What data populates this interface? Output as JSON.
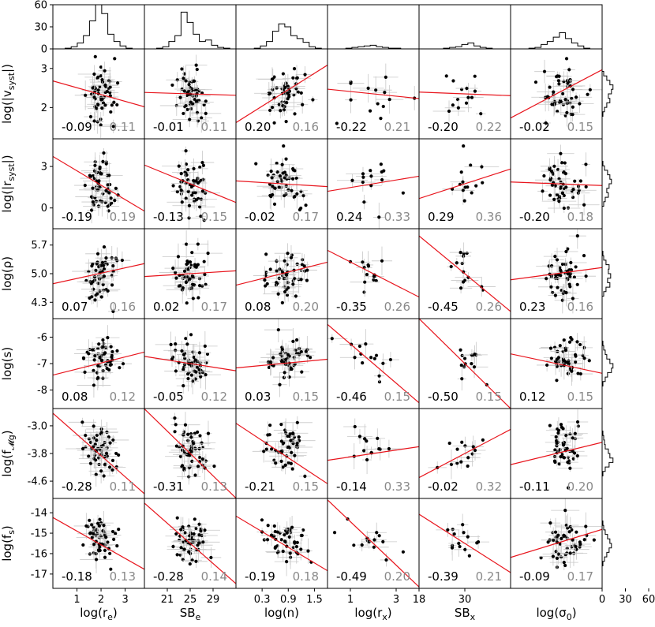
{
  "chart_data": {
    "type": "scatter",
    "layout": "scatter-matrix with marginal histograms",
    "columns": [
      {
        "label": "log(r",
        "sub": "e",
        "suffix": ")",
        "ticks": [
          "1",
          "2",
          "3"
        ],
        "xlim": [
          0,
          3.8
        ]
      },
      {
        "label": "SB",
        "sub": "e",
        "suffix": "",
        "ticks": [
          "21",
          "25",
          "29"
        ],
        "xlim": [
          17,
          33
        ]
      },
      {
        "label": "log(n)",
        "sub": "",
        "suffix": "",
        "ticks": [
          "0.3",
          "0.9",
          "1.5"
        ],
        "xlim": [
          -0.3,
          1.8
        ]
      },
      {
        "label": "log(r",
        "sub": "x",
        "suffix": ")",
        "ticks": [
          "1",
          "3"
        ],
        "xlim": [
          0,
          4
        ]
      },
      {
        "label": "SB",
        "sub": "x",
        "suffix": "",
        "ticks": [
          "18",
          "30"
        ],
        "xlim": [
          18,
          42
        ]
      },
      {
        "label": "log(σ",
        "sub": "0",
        "suffix": ")",
        "ticks": [],
        "xlim": [
          0,
          1
        ]
      }
    ],
    "rows": [
      {
        "label": "log(|v",
        "sub": "syst",
        "suffix": "|)",
        "ticks": [
          "3",
          "2"
        ],
        "ylim": [
          1.2,
          3.5
        ]
      },
      {
        "label": "log(|r",
        "sub": "syst",
        "suffix": "|)",
        "ticks": [
          "3",
          "0"
        ],
        "ylim": [
          -1.5,
          5.0
        ]
      },
      {
        "label": "log(ρ)",
        "sub": "",
        "suffix": "",
        "ticks": [
          "5.7",
          "5.0",
          "4.3"
        ],
        "ylim": [
          3.9,
          6.1
        ]
      },
      {
        "label": "log(s)",
        "sub": "",
        "suffix": "",
        "ticks": [
          "-6",
          "-7",
          "-8"
        ],
        "ylim": [
          -8.7,
          -5.3
        ]
      },
      {
        "label": "log(f",
        "sub": "𝓜g",
        "suffix": ")",
        "ticks": [
          "-3.0",
          "-3.8",
          "-4.6"
        ],
        "ylim": [
          -5.1,
          -2.5
        ]
      },
      {
        "label": "log(f",
        "sub": "s",
        "suffix": ")",
        "ticks": [
          "-14",
          "-15",
          "-16",
          "-17"
        ],
        "ylim": [
          -17.7,
          -13.3
        ]
      }
    ],
    "top_histogram": {
      "ticks": [
        "60",
        "30",
        "0"
      ],
      "ylim": [
        0,
        60
      ]
    },
    "side_histogram": {
      "ticks": [
        "0",
        "30",
        "60"
      ],
      "xlim": [
        0,
        60
      ]
    },
    "correlations": [
      [
        {
          "r": "-0.09",
          "err": "0.11"
        },
        {
          "r": "-0.01",
          "err": "0.11"
        },
        {
          "r": "0.20",
          "err": "0.16"
        },
        {
          "r": "-0.22",
          "err": "0.21"
        },
        {
          "r": "-0.20",
          "err": "0.22"
        },
        {
          "r": "-0.02",
          "err": "0.15"
        }
      ],
      [
        {
          "r": "-0.19",
          "err": "0.19"
        },
        {
          "r": "-0.13",
          "err": "0.15"
        },
        {
          "r": "-0.02",
          "err": "0.17"
        },
        {
          "r": "0.24",
          "err": "0.33"
        },
        {
          "r": "0.29",
          "err": "0.36"
        },
        {
          "r": "-0.20",
          "err": "0.18"
        }
      ],
      [
        {
          "r": "0.07",
          "err": "0.16"
        },
        {
          "r": "0.02",
          "err": "0.17"
        },
        {
          "r": "0.08",
          "err": "0.20"
        },
        {
          "r": "-0.35",
          "err": "0.26"
        },
        {
          "r": "-0.45",
          "err": "0.26"
        },
        {
          "r": "0.23",
          "err": "0.16"
        }
      ],
      [
        {
          "r": "0.08",
          "err": "0.12"
        },
        {
          "r": "-0.05",
          "err": "0.12"
        },
        {
          "r": "0.03",
          "err": "0.15"
        },
        {
          "r": "-0.46",
          "err": "0.15"
        },
        {
          "r": "-0.50",
          "err": "0.15"
        },
        {
          "r": "0.12",
          "err": "0.15"
        }
      ],
      [
        {
          "r": "-0.28",
          "err": "0.11"
        },
        {
          "r": "-0.31",
          "err": "0.13"
        },
        {
          "r": "-0.21",
          "err": "0.15"
        },
        {
          "r": "-0.14",
          "err": "0.33"
        },
        {
          "r": "-0.02",
          "err": "0.32"
        },
        {
          "r": "-0.11",
          "err": "0.20"
        }
      ],
      [
        {
          "r": "-0.18",
          "err": "0.13"
        },
        {
          "r": "-0.28",
          "err": "0.14"
        },
        {
          "r": "-0.19",
          "err": "0.18"
        },
        {
          "r": "-0.49",
          "err": "0.20"
        },
        {
          "r": "-0.39",
          "err": "0.21"
        },
        {
          "r": "-0.09",
          "err": "0.17"
        }
      ]
    ],
    "colors": {
      "points": "#000000",
      "fit_line": "#e8141c",
      "error_bars": "#c8c8c8",
      "err_text": "#8a8a8a",
      "frame": "#000000"
    }
  }
}
